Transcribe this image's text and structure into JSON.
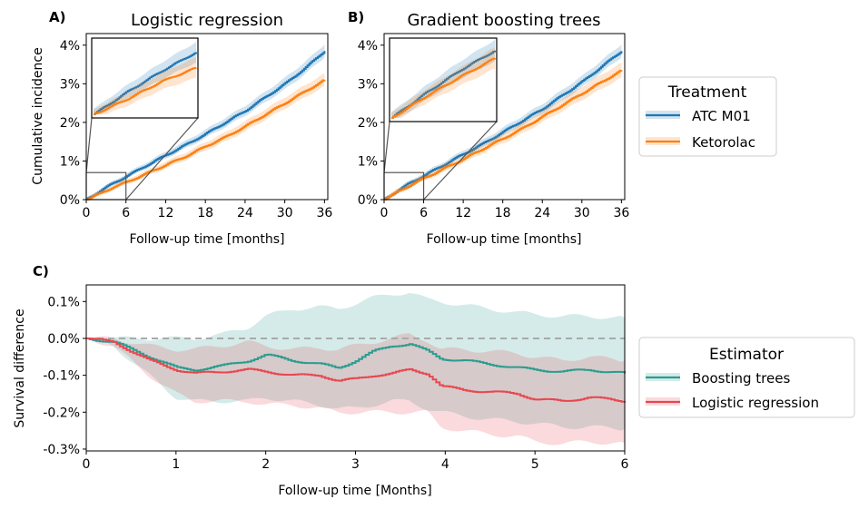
{
  "colors": {
    "atc": "#1f77b4",
    "ketorolac": "#ff7f0e",
    "boosting": "#2a9d8f",
    "logistic": "#e8474f",
    "zero_line": "#aaaaaa",
    "inset_frame": "#555555"
  },
  "chart_data": [
    {
      "panel": "A)",
      "type": "line",
      "title": "Logistic regression",
      "xlabel": "Follow-up time [months]",
      "ylabel": "Cumulative incidence",
      "x_ticks": [
        0,
        6,
        12,
        18,
        24,
        30,
        36
      ],
      "y_ticks": [
        "0%",
        "1%",
        "2%",
        "3%",
        "4%"
      ],
      "xlim": [
        0,
        36.5
      ],
      "ylim": [
        0,
        4.3
      ],
      "inset": {
        "xlim": [
          0,
          6
        ],
        "ylim": [
          0,
          0.7
        ]
      },
      "series": [
        {
          "name": "ATC M01",
          "x": [
            0,
            2,
            4,
            6,
            9,
            12,
            15,
            18,
            21,
            24,
            27,
            30,
            33,
            36
          ],
          "y": [
            0,
            0.22,
            0.42,
            0.6,
            0.88,
            1.15,
            1.42,
            1.7,
            2.0,
            2.3,
            2.65,
            3.0,
            3.4,
            3.85
          ],
          "band": 0.12
        },
        {
          "name": "Ketorolac",
          "x": [
            0,
            2,
            4,
            6,
            9,
            12,
            15,
            18,
            21,
            24,
            27,
            30,
            33,
            36
          ],
          "y": [
            0,
            0.15,
            0.32,
            0.45,
            0.67,
            0.9,
            1.12,
            1.38,
            1.62,
            1.9,
            2.2,
            2.5,
            2.8,
            3.1
          ],
          "band": 0.12
        }
      ]
    },
    {
      "panel": "B)",
      "type": "line",
      "title": "Gradient boosting trees",
      "xlabel": "Follow-up time [months]",
      "ylabel": "",
      "x_ticks": [
        0,
        6,
        12,
        18,
        24,
        30,
        36
      ],
      "y_ticks": [
        "0%",
        "1%",
        "2%",
        "3%",
        "4%"
      ],
      "xlim": [
        0,
        36.5
      ],
      "ylim": [
        0,
        4.3
      ],
      "inset": {
        "xlim": [
          0,
          6
        ],
        "ylim": [
          0,
          0.7
        ]
      },
      "series": [
        {
          "name": "ATC M01",
          "x": [
            0,
            2,
            4,
            6,
            9,
            12,
            15,
            18,
            21,
            24,
            27,
            30,
            33,
            36
          ],
          "y": [
            0,
            0.23,
            0.44,
            0.62,
            0.9,
            1.18,
            1.45,
            1.75,
            2.05,
            2.35,
            2.7,
            3.05,
            3.45,
            3.85
          ],
          "band": 0.12
        },
        {
          "name": "Ketorolac",
          "x": [
            0,
            2,
            4,
            6,
            9,
            12,
            15,
            18,
            21,
            24,
            27,
            30,
            33,
            36
          ],
          "y": [
            0,
            0.2,
            0.38,
            0.55,
            0.8,
            1.05,
            1.32,
            1.58,
            1.85,
            2.15,
            2.45,
            2.75,
            3.05,
            3.35
          ],
          "band": 0.14
        }
      ]
    },
    {
      "panel": "C)",
      "type": "line",
      "title": "",
      "xlabel": "Follow-up time [Months]",
      "ylabel": "Survival difference",
      "x_ticks": [
        0,
        1,
        2,
        3,
        4,
        5,
        6
      ],
      "y_ticks": [
        "0.1%",
        "0.0%",
        "-0.1%",
        "-0.2%",
        "-0.3%"
      ],
      "y_tick_values": [
        0.1,
        0.0,
        -0.1,
        -0.2,
        -0.3
      ],
      "xlim": [
        0,
        6
      ],
      "ylim": [
        -0.305,
        0.145
      ],
      "series": [
        {
          "name": "Boosting trees",
          "x": [
            0,
            0.3,
            0.5,
            0.7,
            1.0,
            1.2,
            1.5,
            1.8,
            2.0,
            2.3,
            2.6,
            2.8,
            3.0,
            3.2,
            3.4,
            3.6,
            3.8,
            3.95,
            4.2,
            4.5,
            4.8,
            5.0,
            5.3,
            5.6,
            6.0
          ],
          "y": [
            0.0,
            -0.01,
            -0.03,
            -0.05,
            -0.08,
            -0.085,
            -0.075,
            -0.06,
            -0.045,
            -0.06,
            -0.07,
            -0.08,
            -0.06,
            -0.035,
            -0.02,
            -0.015,
            -0.035,
            -0.055,
            -0.06,
            -0.07,
            -0.08,
            -0.085,
            -0.09,
            -0.085,
            -0.095
          ],
          "upper": [
            0.0,
            0.0,
            0.0,
            0.0,
            0.0,
            0.0,
            0.01,
            0.03,
            0.06,
            0.08,
            0.085,
            0.08,
            0.095,
            0.11,
            0.12,
            0.125,
            0.105,
            0.1,
            0.09,
            0.08,
            0.07,
            0.065,
            0.06,
            0.06,
            0.055
          ],
          "lower": [
            0.0,
            -0.02,
            -0.06,
            -0.1,
            -0.16,
            -0.17,
            -0.17,
            -0.17,
            -0.16,
            -0.17,
            -0.18,
            -0.19,
            -0.19,
            -0.18,
            -0.17,
            -0.17,
            -0.19,
            -0.2,
            -0.21,
            -0.22,
            -0.225,
            -0.23,
            -0.24,
            -0.24,
            -0.245
          ]
        },
        {
          "name": "Logistic regression",
          "x": [
            0,
            0.3,
            0.5,
            0.7,
            1.0,
            1.2,
            1.5,
            1.8,
            2.0,
            2.3,
            2.6,
            2.8,
            3.0,
            3.2,
            3.4,
            3.6,
            3.8,
            3.95,
            4.2,
            4.5,
            4.8,
            5.0,
            5.3,
            5.6,
            6.0
          ],
          "y": [
            0.0,
            -0.01,
            -0.035,
            -0.06,
            -0.085,
            -0.095,
            -0.09,
            -0.085,
            -0.09,
            -0.1,
            -0.1,
            -0.115,
            -0.11,
            -0.1,
            -0.095,
            -0.085,
            -0.095,
            -0.13,
            -0.14,
            -0.145,
            -0.15,
            -0.165,
            -0.17,
            -0.16,
            -0.17
          ],
          "upper": [
            0.0,
            0.0,
            -0.01,
            -0.02,
            -0.03,
            -0.03,
            -0.02,
            -0.01,
            -0.02,
            -0.03,
            -0.025,
            -0.03,
            -0.02,
            -0.01,
            0.0,
            0.01,
            -0.005,
            -0.03,
            -0.03,
            -0.035,
            -0.04,
            -0.05,
            -0.06,
            -0.05,
            -0.06
          ],
          "lower": [
            0.0,
            -0.02,
            -0.06,
            -0.1,
            -0.15,
            -0.17,
            -0.17,
            -0.17,
            -0.18,
            -0.18,
            -0.19,
            -0.2,
            -0.2,
            -0.2,
            -0.2,
            -0.2,
            -0.2,
            -0.24,
            -0.25,
            -0.26,
            -0.265,
            -0.28,
            -0.285,
            -0.28,
            -0.285
          ]
        }
      ]
    }
  ],
  "legends": {
    "treatment": {
      "title": "Treatment",
      "items": [
        "ATC M01",
        "Ketorolac"
      ]
    },
    "estimator": {
      "title": "Estimator",
      "items": [
        "Boosting trees",
        "Logistic regression"
      ]
    }
  }
}
